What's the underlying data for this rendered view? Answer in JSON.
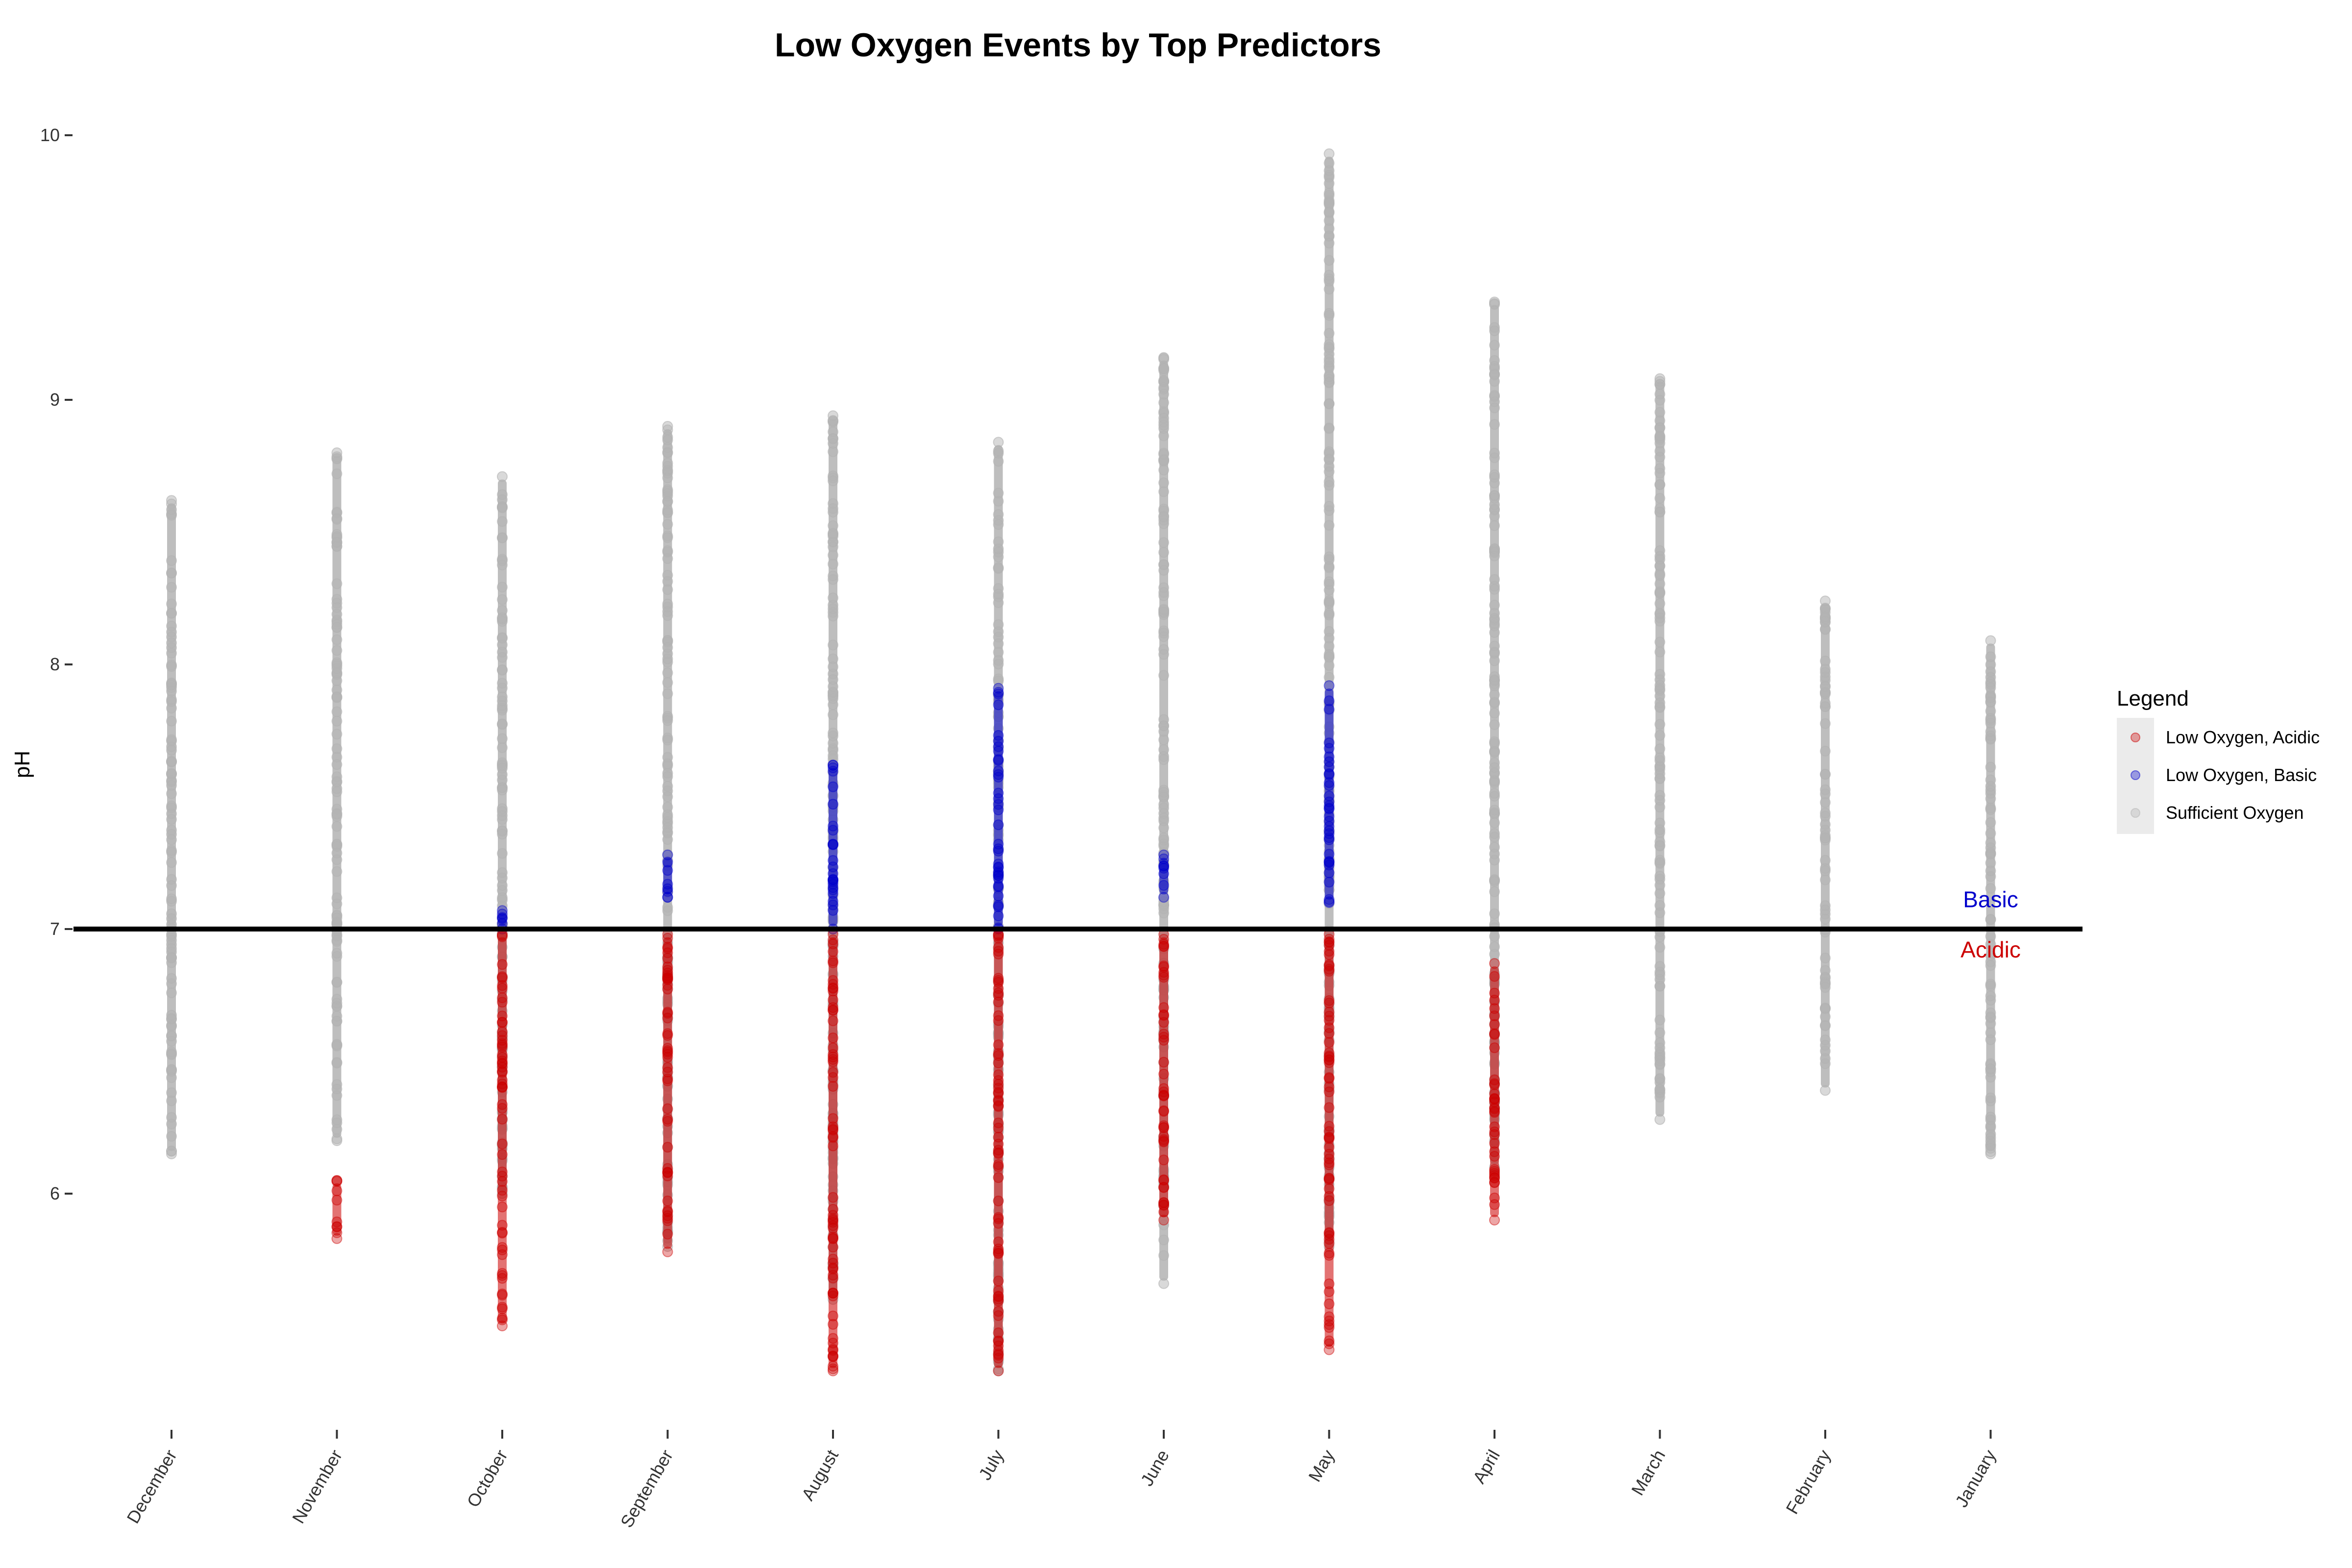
{
  "chart_data": {
    "type": "scatter",
    "title": "Low Oxygen Events by Top Predictors",
    "xlabel": "",
    "ylabel": "pH",
    "ylim": [
      5.1,
      10.2
    ],
    "yticks": [
      6,
      7,
      8,
      9,
      10
    ],
    "categories": [
      "December",
      "November",
      "October",
      "September",
      "August",
      "July",
      "June",
      "May",
      "April",
      "March",
      "February",
      "January"
    ],
    "reference_line": {
      "y": 7,
      "color": "#000000"
    },
    "annotations": [
      {
        "text": "Basic",
        "x": "January",
        "y": 7.11,
        "color": "#0000cc"
      },
      {
        "text": "Acidic",
        "x": "January",
        "y": 6.92,
        "color": "#cc0000"
      }
    ],
    "legend": {
      "title": "Legend",
      "position": "right",
      "entries": [
        {
          "name": "Low Oxygen, Acidic",
          "color": "#cc0000"
        },
        {
          "name": "Low Oxygen, Basic",
          "color": "#0000cc"
        },
        {
          "name": "Sufficient Oxygen",
          "color": "#b3b3b3"
        }
      ]
    },
    "series": [
      {
        "name": "Sufficient Oxygen",
        "color": "#b3b3b3",
        "ranges": [
          {
            "month": "December",
            "min": 6.15,
            "max": 8.62
          },
          {
            "month": "November",
            "min": 6.2,
            "max": 8.8
          },
          {
            "month": "October",
            "min": 6.0,
            "max": 8.71
          },
          {
            "month": "September",
            "min": 5.8,
            "max": 8.9
          },
          {
            "month": "August",
            "min": 5.6,
            "max": 8.94
          },
          {
            "month": "July",
            "min": 5.33,
            "max": 8.84
          },
          {
            "month": "June",
            "min": 5.66,
            "max": 9.16
          },
          {
            "month": "May",
            "min": 5.8,
            "max": 9.93
          },
          {
            "month": "April",
            "min": 6.1,
            "max": 9.37
          },
          {
            "month": "March",
            "min": 6.28,
            "max": 9.08
          },
          {
            "month": "February",
            "min": 6.39,
            "max": 8.24
          },
          {
            "month": "January",
            "min": 6.15,
            "max": 8.09
          }
        ]
      },
      {
        "name": "Low Oxygen, Basic",
        "color": "#0000cc",
        "ranges": [
          {
            "month": "October",
            "min": 7.0,
            "max": 7.07
          },
          {
            "month": "September",
            "min": 7.12,
            "max": 7.28
          },
          {
            "month": "August",
            "min": 7.0,
            "max": 7.62
          },
          {
            "month": "July",
            "min": 7.0,
            "max": 7.91
          },
          {
            "month": "June",
            "min": 7.12,
            "max": 7.28
          },
          {
            "month": "May",
            "min": 7.1,
            "max": 7.92
          }
        ]
      },
      {
        "name": "Low Oxygen, Acidic",
        "color": "#cc0000",
        "ranges": [
          {
            "month": "November",
            "min": 5.83,
            "max": 6.05
          },
          {
            "month": "October",
            "min": 5.5,
            "max": 6.98
          },
          {
            "month": "September",
            "min": 5.78,
            "max": 6.98
          },
          {
            "month": "August",
            "min": 5.33,
            "max": 6.98
          },
          {
            "month": "July",
            "min": 5.33,
            "max": 6.98
          },
          {
            "month": "June",
            "min": 5.9,
            "max": 6.98
          },
          {
            "month": "May",
            "min": 5.41,
            "max": 6.98
          },
          {
            "month": "April",
            "min": 5.9,
            "max": 6.87
          }
        ]
      }
    ]
  }
}
